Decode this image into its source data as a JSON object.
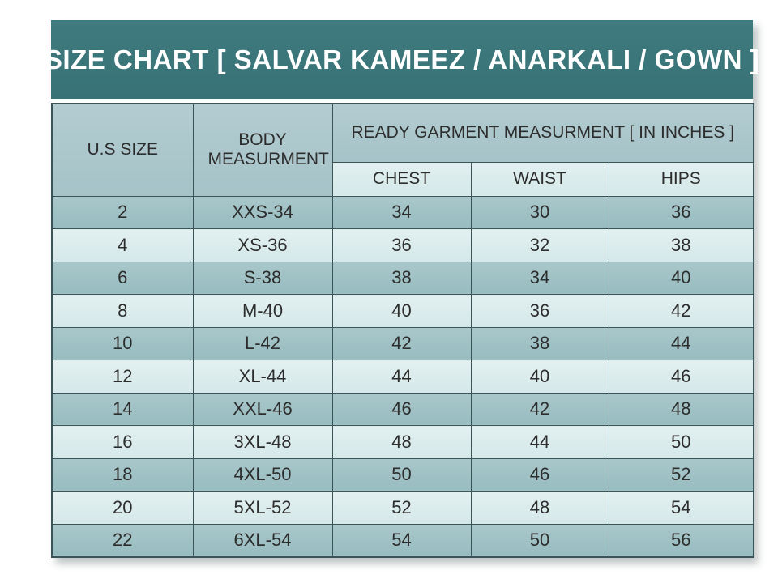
{
  "title_band": {
    "text": "SIZE CHART [ SALVAR KAMEEZ / ANARKALI / GOWN ]"
  },
  "table": {
    "headers": {
      "us_size": "U.S SIZE",
      "body_measurement": "BODY MEASURMENT",
      "ready_garment_group": "READY GARMENT MEASURMENT [ IN INCHES ]",
      "sub_headers": [
        "CHEST",
        "WAIST",
        "HIPS"
      ]
    },
    "rows": [
      [
        "2",
        "XXS-34",
        "34",
        "30",
        "36"
      ],
      [
        "4",
        "XS-36",
        "36",
        "32",
        "38"
      ],
      [
        "6",
        "S-38",
        "38",
        "34",
        "40"
      ],
      [
        "8",
        "M-40",
        "40",
        "36",
        "42"
      ],
      [
        "10",
        "L-42",
        "42",
        "38",
        "44"
      ],
      [
        "12",
        "XL-44",
        "44",
        "40",
        "46"
      ],
      [
        "14",
        "XXL-46",
        "46",
        "42",
        "48"
      ],
      [
        "16",
        "3XL-48",
        "48",
        "44",
        "50"
      ],
      [
        "18",
        "4XL-50",
        "50",
        "46",
        "52"
      ],
      [
        "20",
        "5XL-52",
        "52",
        "48",
        "54"
      ],
      [
        "22",
        "6XL-54",
        "54",
        "50",
        "56"
      ]
    ]
  },
  "chart_data": {
    "type": "table",
    "title": "SIZE CHART [ SALVAR KAMEEZ / ANARKALI / GOWN ]",
    "column_group_header": "READY GARMENT MEASURMENT [ IN INCHES ]",
    "column_group_spans": [
      "CHEST",
      "WAIST",
      "HIPS"
    ],
    "columns": [
      "U.S SIZE",
      "BODY MEASURMENT",
      "CHEST",
      "WAIST",
      "HIPS"
    ],
    "rows": [
      [
        "2",
        "XXS-34",
        34,
        30,
        36
      ],
      [
        "4",
        "XS-36",
        36,
        32,
        38
      ],
      [
        "6",
        "S-38",
        38,
        34,
        40
      ],
      [
        "8",
        "M-40",
        40,
        36,
        42
      ],
      [
        "10",
        "L-42",
        42,
        38,
        44
      ],
      [
        "12",
        "XL-44",
        44,
        40,
        46
      ],
      [
        "14",
        "XXL-46",
        46,
        42,
        48
      ],
      [
        "16",
        "3XL-48",
        48,
        44,
        50
      ],
      [
        "18",
        "4XL-50",
        50,
        46,
        52
      ],
      [
        "20",
        "5XL-52",
        52,
        48,
        54
      ],
      [
        "22",
        "6XL-54",
        54,
        50,
        56
      ]
    ]
  },
  "colors": {
    "band_teal": "#3e7a7e",
    "band_teal_dark": "#387276",
    "header_cell_top": "#b3ccd1",
    "header_cell_bot": "#a5c3c8",
    "row_dark_top": "#a9c7ca",
    "row_dark_bot": "#97bcc0",
    "row_light_top": "#e2f0f0",
    "row_light_bot": "#d5e8e9",
    "border": "#3a5457",
    "text_dark": "#2d2d2d",
    "title_text": "#ffffff"
  }
}
